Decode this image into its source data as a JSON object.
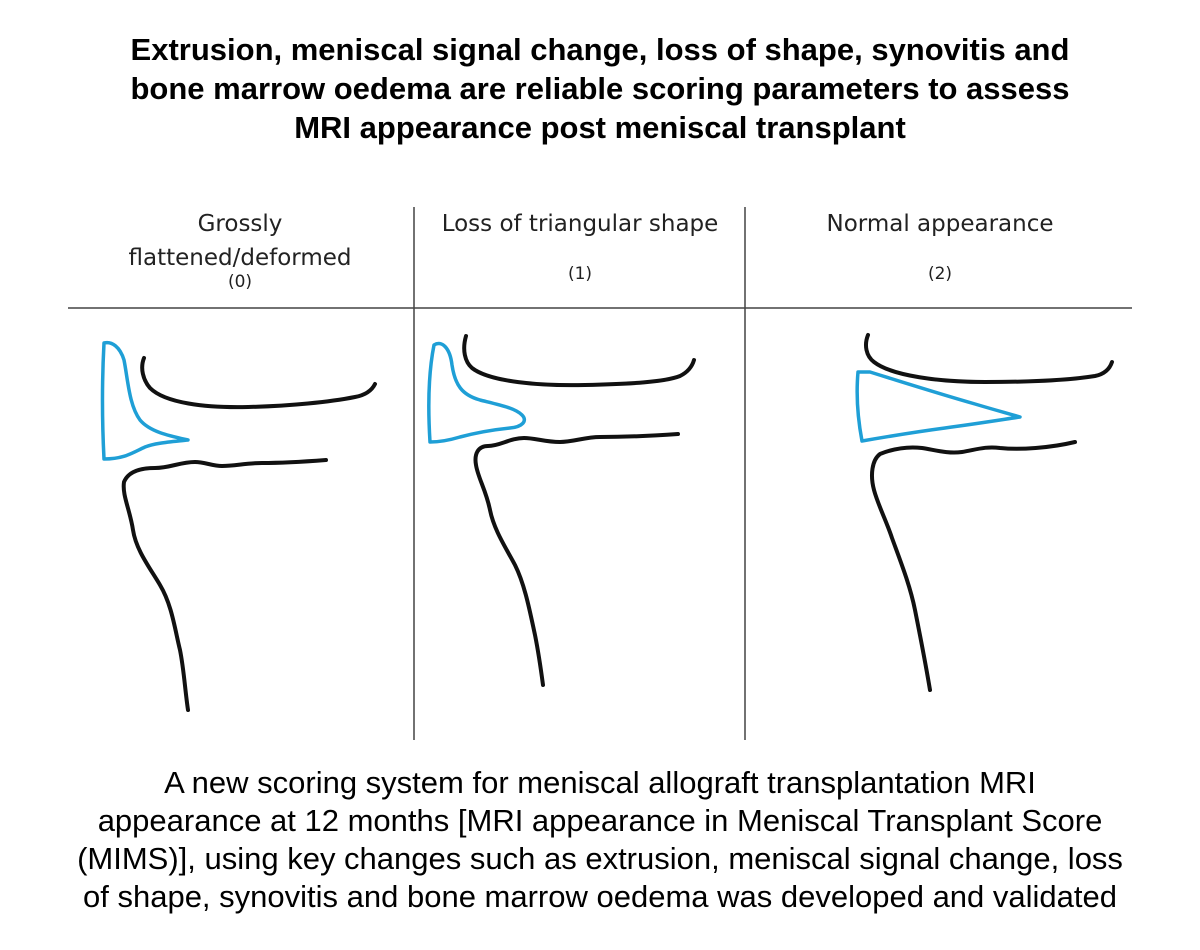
{
  "title": {
    "lines": [
      "Extrusion, meniscal signal change, loss of shape, synovitis and",
      "bone marrow oedema are reliable scoring parameters to assess",
      "MRI appearance post meniscal transplant"
    ]
  },
  "columns": [
    {
      "label_lines": [
        "Grossly",
        "flattened/deformed"
      ],
      "score": "(0)"
    },
    {
      "label_lines": [
        "Loss of triangular shape"
      ],
      "score": "(1)"
    },
    {
      "label_lines": [
        "Normal appearance"
      ],
      "score": "(2)"
    }
  ],
  "caption": {
    "lines": [
      "A new scoring system for meniscal allograft transplantation MRI",
      "appearance at 12 months [MRI appearance in Meniscal Transplant Score",
      "(MIMS)], using key changes such as extrusion, meniscal signal change, loss",
      "of shape, synovitis and bone marrow oedema was developed and validated"
    ]
  },
  "colors": {
    "meniscus": "#1f9fd6",
    "bone": "#111111",
    "grid": "#444444"
  }
}
